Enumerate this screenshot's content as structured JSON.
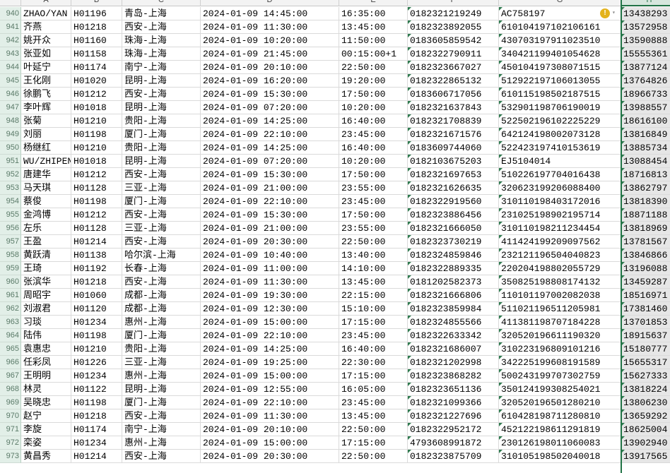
{
  "columns": [
    "A",
    "B",
    "C",
    "D",
    "E",
    "F",
    "G",
    "H"
  ],
  "selected_column": "H",
  "warning_icon": "error-check-warning-icon",
  "rows": [
    {
      "n": "940",
      "a": "ZHAO/YAN",
      "b": "H01196",
      "c": "青岛-上海",
      "d": "2024-01-09 14:45:00",
      "e": "16:35:00",
      "f": "0182321219249",
      "g": "AC758197",
      "h": "13438293"
    },
    {
      "n": "941",
      "a": "齐燕",
      "b": "H01218",
      "c": "西安-上海",
      "d": "2024-01-09 11:30:00",
      "e": "13:45:00",
      "f": "0182323892055",
      "g": "610104197102106161",
      "h": "13572958"
    },
    {
      "n": "942",
      "a": "姚开众",
      "b": "H01160",
      "c": "珠海-上海",
      "d": "2024-01-09 10:20:00",
      "e": "11:50:00",
      "f": "0183605859542",
      "g": "430703197911023510",
      "h": "13590888"
    },
    {
      "n": "943",
      "a": "张亚如",
      "b": "H01158",
      "c": "珠海-上海",
      "d": "2024-01-09 21:45:00",
      "e": "00:15:00+1",
      "f": "0182322790911",
      "g": "340421199401054628",
      "h": "15555361"
    },
    {
      "n": "944",
      "a": "叶延宁",
      "b": "H01174",
      "c": "南宁-上海",
      "d": "2024-01-09 20:10:00",
      "e": "22:50:00",
      "f": "0182323667027",
      "g": "450104197308071515",
      "h": "13877124"
    },
    {
      "n": "945",
      "a": "王化刚",
      "b": "H01020",
      "c": "昆明-上海",
      "d": "2024-01-09 16:20:00",
      "e": "19:20:00",
      "f": "0182322865132",
      "g": "512922197106013055",
      "h": "13764826"
    },
    {
      "n": "946",
      "a": "徐鹏飞",
      "b": "H01212",
      "c": "西安-上海",
      "d": "2024-01-09 15:30:00",
      "e": "17:50:00",
      "f": "0183606717056",
      "g": "610115198502187515",
      "h": "18966733"
    },
    {
      "n": "947",
      "a": "李叶辉",
      "b": "H01018",
      "c": "昆明-上海",
      "d": "2024-01-09 07:20:00",
      "e": "10:20:00",
      "f": "0182321637843",
      "g": "532901198706190019",
      "h": "13988557"
    },
    {
      "n": "948",
      "a": "张菊",
      "b": "H01210",
      "c": "贵阳-上海",
      "d": "2024-01-09 14:25:00",
      "e": "16:40:00",
      "f": "0182321708839",
      "g": "522502196102225229",
      "h": "18616100"
    },
    {
      "n": "949",
      "a": "刘丽",
      "b": "H01198",
      "c": "厦门-上海",
      "d": "2024-01-09 22:10:00",
      "e": "23:45:00",
      "f": "0182321671576",
      "g": "642124198002073128",
      "h": "13816849"
    },
    {
      "n": "950",
      "a": "杨继红",
      "b": "H01210",
      "c": "贵阳-上海",
      "d": "2024-01-09 14:25:00",
      "e": "16:40:00",
      "f": "0183609744060",
      "g": "522423197410153619",
      "h": "13885734"
    },
    {
      "n": "951",
      "a": "WU/ZHIPEN",
      "b": "H01018",
      "c": "昆明-上海",
      "d": "2024-01-09 07:20:00",
      "e": "10:20:00",
      "f": "0182103675203",
      "g": "EJ5104014",
      "h": "13088454"
    },
    {
      "n": "952",
      "a": "唐建华",
      "b": "H01212",
      "c": "西安-上海",
      "d": "2024-01-09 15:30:00",
      "e": "17:50:00",
      "f": "0182321697653",
      "g": "510226197704016438",
      "h": "18716813"
    },
    {
      "n": "953",
      "a": "马天琪",
      "b": "H01128",
      "c": "三亚-上海",
      "d": "2024-01-09 21:00:00",
      "e": "23:55:00",
      "f": "0182321626635",
      "g": "320623199206088400",
      "h": "13862797"
    },
    {
      "n": "954",
      "a": "蔡俊",
      "b": "H01198",
      "c": "厦门-上海",
      "d": "2024-01-09 22:10:00",
      "e": "23:45:00",
      "f": "0182322919560",
      "g": "310110198403172016",
      "h": "13818390"
    },
    {
      "n": "955",
      "a": "金鸿博",
      "b": "H01212",
      "c": "西安-上海",
      "d": "2024-01-09 15:30:00",
      "e": "17:50:00",
      "f": "0182323886456",
      "g": "231025198902195714",
      "h": "18871188"
    },
    {
      "n": "956",
      "a": "左乐",
      "b": "H01128",
      "c": "三亚-上海",
      "d": "2024-01-09 21:00:00",
      "e": "23:55:00",
      "f": "0182321666050",
      "g": "310110198211234454",
      "h": "13818969"
    },
    {
      "n": "957",
      "a": "王盈",
      "b": "H01214",
      "c": "西安-上海",
      "d": "2024-01-09 20:30:00",
      "e": "22:50:00",
      "f": "0182323730219",
      "g": "411424199209097562",
      "h": "13781567"
    },
    {
      "n": "958",
      "a": "黄跃清",
      "b": "H01138",
      "c": "哈尔滨-上海",
      "d": "2024-01-09 10:40:00",
      "e": "13:40:00",
      "f": "0182324859846",
      "g": "232121196504040823",
      "h": "13846866"
    },
    {
      "n": "959",
      "a": "王琦",
      "b": "H01192",
      "c": "长春-上海",
      "d": "2024-01-09 11:00:00",
      "e": "14:10:00",
      "f": "0182322889335",
      "g": "220204198802055729",
      "h": "13196088"
    },
    {
      "n": "960",
      "a": "张滨华",
      "b": "H01218",
      "c": "西安-上海",
      "d": "2024-01-09 11:30:00",
      "e": "13:45:00",
      "f": "0181202582373",
      "g": "350825198808174132",
      "h": "13459287"
    },
    {
      "n": "961",
      "a": "周昭宇",
      "b": "H01060",
      "c": "成都-上海",
      "d": "2024-01-09 19:30:00",
      "e": "22:15:00",
      "f": "0182321666806",
      "g": "110101197002082038",
      "h": "18516971"
    },
    {
      "n": "962",
      "a": "刘淑君",
      "b": "H01120",
      "c": "成都-上海",
      "d": "2024-01-09 12:30:00",
      "e": "15:10:00",
      "f": "0182323859984",
      "g": "511021196511205981",
      "h": "17381460"
    },
    {
      "n": "963",
      "a": "习琰",
      "b": "H01234",
      "c": "惠州-上海",
      "d": "2024-01-09 15:00:00",
      "e": "17:15:00",
      "f": "0182324855566",
      "g": "411381198707184228",
      "h": "13701853"
    },
    {
      "n": "964",
      "a": "陆伟",
      "b": "H01198",
      "c": "厦门-上海",
      "d": "2024-01-09 22:10:00",
      "e": "23:45:00",
      "f": "0182322633342",
      "g": "320520196611190320",
      "h": "18915637"
    },
    {
      "n": "965",
      "a": "袁惠忠",
      "b": "H01210",
      "c": "贵阳-上海",
      "d": "2024-01-09 14:25:00",
      "e": "16:40:00",
      "f": "0182321686007",
      "g": "310223196809101216",
      "h": "15180777"
    },
    {
      "n": "966",
      "a": "任彩凤",
      "b": "H01226",
      "c": "三亚-上海",
      "d": "2024-01-09 19:25:00",
      "e": "22:30:00",
      "f": "0182321202998",
      "g": "342225199608191589",
      "h": "15655317"
    },
    {
      "n": "967",
      "a": "王明明",
      "b": "H01234",
      "c": "惠州-上海",
      "d": "2024-01-09 15:00:00",
      "e": "17:15:00",
      "f": "0182323868282",
      "g": "500243199707302759",
      "h": "15627333"
    },
    {
      "n": "968",
      "a": "林灵",
      "b": "H01122",
      "c": "昆明-上海",
      "d": "2024-01-09 12:55:00",
      "e": "16:05:00",
      "f": "0182323651136",
      "g": "350124199308254021",
      "h": "13818224"
    },
    {
      "n": "969",
      "a": "吴晓忠",
      "b": "H01198",
      "c": "厦门-上海",
      "d": "2024-01-09 22:10:00",
      "e": "23:45:00",
      "f": "0182321099366",
      "g": "320520196501280210",
      "h": "13806230"
    },
    {
      "n": "970",
      "a": "赵宁",
      "b": "H01218",
      "c": "西安-上海",
      "d": "2024-01-09 11:30:00",
      "e": "13:45:00",
      "f": "0182321227696",
      "g": "610428198711280810",
      "h": "13659292"
    },
    {
      "n": "971",
      "a": "李旋",
      "b": "H01174",
      "c": "南宁-上海",
      "d": "2024-01-09 20:10:00",
      "e": "22:50:00",
      "f": "0182322952172",
      "g": "452122198611291819",
      "h": "18625004"
    },
    {
      "n": "972",
      "a": "栾姿",
      "b": "H01234",
      "c": "惠州-上海",
      "d": "2024-01-09 15:00:00",
      "e": "17:15:00",
      "f": "4793608991872",
      "g": "230126198011060083",
      "h": "13902940"
    },
    {
      "n": "973",
      "a": "黄昌秀",
      "b": "H01214",
      "c": "西安-上海",
      "d": "2024-01-09 20:30:00",
      "e": "22:50:00",
      "f": "0182323875709",
      "g": "310105198502040018",
      "h": "13917565"
    }
  ]
}
